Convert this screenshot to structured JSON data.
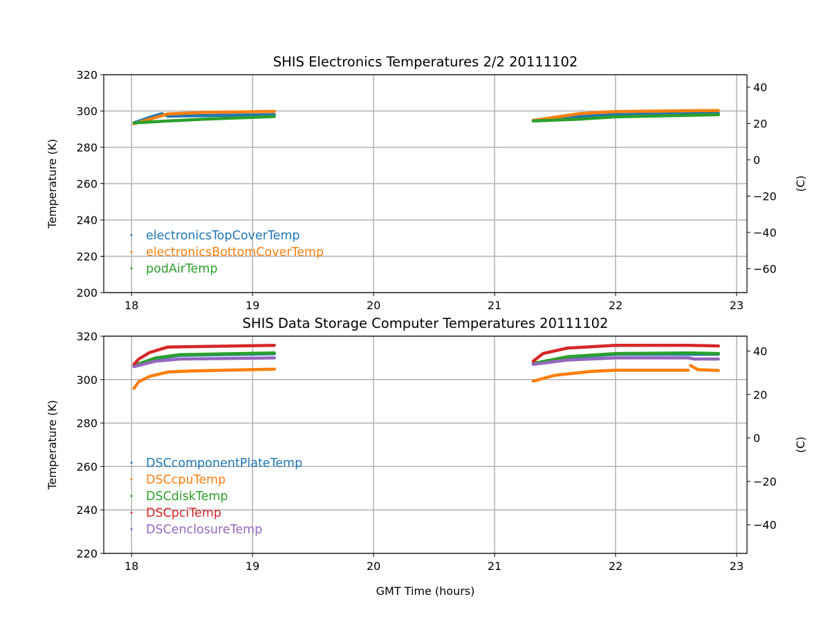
{
  "chart_data": [
    {
      "type": "line",
      "title": "SHIS Electronics Temperatures 2/2 20111102",
      "xlabel": "",
      "ylabel": "Temperature (K)",
      "ylabel_right": "(C)",
      "xlim": [
        17.77,
        23.086
      ],
      "ylim": [
        200,
        320
      ],
      "xticks": [
        18,
        19,
        20,
        21,
        22,
        23
      ],
      "yticks": [
        200,
        220,
        240,
        260,
        280,
        300,
        320
      ],
      "yticks_right": [
        -60,
        -40,
        -20,
        0,
        20,
        40
      ],
      "grid": true,
      "legend_position": "lower-left",
      "series": [
        {
          "name": "electronicsTopCoverTemp",
          "color": "#1f77b4",
          "segments": [
            [
              [
                18.02,
                293.5
              ],
              [
                18.15,
                296.5
              ],
              [
                18.25,
                298.5
              ],
              [
                18.3,
                297.2
              ],
              [
                18.6,
                297.5
              ],
              [
                19.18,
                298
              ]
            ],
            [
              [
                21.32,
                294.8
              ],
              [
                21.7,
                297
              ],
              [
                22.0,
                298
              ],
              [
                22.85,
                298.8
              ]
            ]
          ]
        },
        {
          "name": "electronicsBottomCoverTemp",
          "color": "#ff7f0e",
          "segments": [
            [
              [
                18.02,
                293
              ],
              [
                18.15,
                295.5
              ],
              [
                18.3,
                298.4
              ],
              [
                18.6,
                299.2
              ],
              [
                19.18,
                299.8
              ]
            ],
            [
              [
                21.32,
                294.8
              ],
              [
                21.7,
                298.5
              ],
              [
                22.0,
                299.7
              ],
              [
                22.85,
                300.3
              ]
            ]
          ]
        },
        {
          "name": "podAirTemp",
          "color": "#2ca02c",
          "segments": [
            [
              [
                18.02,
                293.5
              ],
              [
                18.3,
                294.5
              ],
              [
                18.6,
                295.5
              ],
              [
                19.18,
                297
              ]
            ],
            [
              [
                21.32,
                294.5
              ],
              [
                21.7,
                295.5
              ],
              [
                22.0,
                296.8
              ],
              [
                22.85,
                298
              ]
            ]
          ]
        }
      ]
    },
    {
      "type": "line",
      "title": "SHIS Data Storage Computer Temperatures 20111102",
      "xlabel": "GMT Time (hours)",
      "ylabel": "Temperature (K)",
      "ylabel_right": "(C)",
      "xlim": [
        17.77,
        23.086
      ],
      "ylim": [
        220,
        320
      ],
      "xticks": [
        18,
        19,
        20,
        21,
        22,
        23
      ],
      "yticks": [
        220,
        240,
        260,
        280,
        300,
        320
      ],
      "yticks_right": [
        -40,
        -20,
        0,
        20,
        40
      ],
      "grid": true,
      "legend_position": "lower-left",
      "series": [
        {
          "name": "DSCcomponentPlateTemp",
          "color": "#1f77b4",
          "segments": [
            [
              [
                18.02,
                306.3
              ],
              [
                18.2,
                309.7
              ],
              [
                18.4,
                311.2
              ],
              [
                19.18,
                311.9
              ]
            ],
            [
              [
                21.32,
                307.3
              ],
              [
                21.6,
                310.2
              ],
              [
                22.0,
                311.7
              ],
              [
                22.85,
                311.7
              ]
            ]
          ]
        },
        {
          "name": "DSCcpuTemp",
          "color": "#ff7f0e",
          "segments": [
            [
              [
                18.02,
                296
              ],
              [
                18.06,
                299
              ],
              [
                18.15,
                301.5
              ],
              [
                18.3,
                303.5
              ],
              [
                18.5,
                304
              ],
              [
                19.18,
                304.8
              ]
            ],
            [
              [
                21.32,
                299.3
              ],
              [
                21.5,
                302
              ],
              [
                21.8,
                303.8
              ],
              [
                22.0,
                304.3
              ],
              [
                22.6,
                304.3
              ]
            ],
            [
              [
                22.62,
                306.5
              ],
              [
                22.68,
                304.6
              ],
              [
                22.85,
                304.2
              ]
            ]
          ]
        },
        {
          "name": "DSCdiskTemp",
          "color": "#2ca02c",
          "segments": [
            [
              [
                18.02,
                306.5
              ],
              [
                18.2,
                310
              ],
              [
                18.4,
                311.5
              ],
              [
                19.18,
                312.3
              ]
            ],
            [
              [
                21.32,
                307.5
              ],
              [
                21.6,
                310.5
              ],
              [
                22.0,
                312
              ],
              [
                22.6,
                312.3
              ],
              [
                22.85,
                312
              ]
            ]
          ]
        },
        {
          "name": "DSCpciTemp",
          "color": "#d62728",
          "segments": [
            [
              [
                18.02,
                307
              ],
              [
                18.06,
                309.5
              ],
              [
                18.15,
                312.5
              ],
              [
                18.3,
                315
              ],
              [
                19.18,
                315.8
              ]
            ],
            [
              [
                21.32,
                308.5
              ],
              [
                21.4,
                312
              ],
              [
                21.6,
                314.5
              ],
              [
                22.0,
                315.8
              ],
              [
                22.6,
                315.8
              ],
              [
                22.85,
                315.5
              ]
            ]
          ]
        },
        {
          "name": "DSCenclosureTemp",
          "color": "#9467bd",
          "segments": [
            [
              [
                18.02,
                306
              ],
              [
                18.2,
                308.5
              ],
              [
                18.4,
                309.5
              ],
              [
                19.18,
                310
              ]
            ],
            [
              [
                21.32,
                307
              ],
              [
                21.6,
                309
              ],
              [
                22.0,
                310
              ],
              [
                22.6,
                310
              ],
              [
                22.65,
                309.5
              ],
              [
                22.85,
                309.5
              ]
            ]
          ]
        }
      ]
    }
  ]
}
